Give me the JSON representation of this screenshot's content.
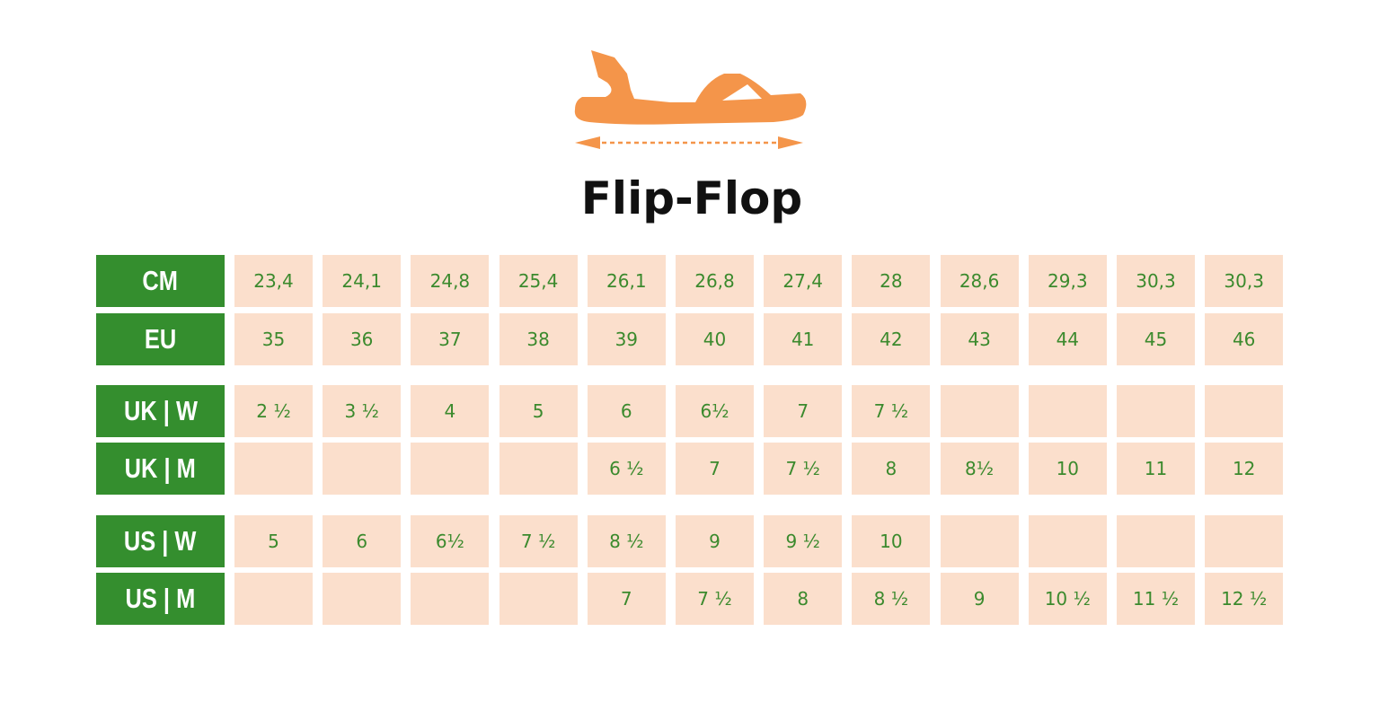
{
  "title": "Flip-Flop",
  "icon": "sandal-icon",
  "colors": {
    "label_bg": "#348e2e",
    "cell_bg": "#fbdfcc",
    "cell_text": "#3b8a2d",
    "icon": "#f4954a"
  },
  "rows": [
    {
      "label": "CM",
      "values": [
        "23,4",
        "24,1",
        "24,8",
        "25,4",
        "26,1",
        "26,8",
        "27,4",
        "28",
        "28,6",
        "29,3",
        "30,3",
        "30,3"
      ]
    },
    {
      "label": "EU",
      "values": [
        "35",
        "36",
        "37",
        "38",
        "39",
        "40",
        "41",
        "42",
        "43",
        "44",
        "45",
        "46"
      ]
    },
    {
      "label": "UK | W",
      "values": [
        "2 ½",
        "3 ½",
        "4",
        "5",
        "6",
        "6½",
        "7",
        "7 ½",
        "",
        "",
        "",
        ""
      ]
    },
    {
      "label": "UK | M",
      "values": [
        "",
        "",
        "",
        "",
        "6 ½",
        "7",
        "7 ½",
        "8",
        "8½",
        "10",
        "11",
        "12"
      ]
    },
    {
      "label": "US | W",
      "values": [
        "5",
        "6",
        "6½",
        "7 ½",
        "8 ½",
        "9",
        "9 ½",
        "10",
        "",
        "",
        "",
        ""
      ]
    },
    {
      "label": "US | M",
      "values": [
        "",
        "",
        "",
        "",
        "7",
        "7 ½",
        "8",
        "8 ½",
        "9",
        "10 ½",
        "11 ½",
        "12 ½"
      ]
    }
  ]
}
